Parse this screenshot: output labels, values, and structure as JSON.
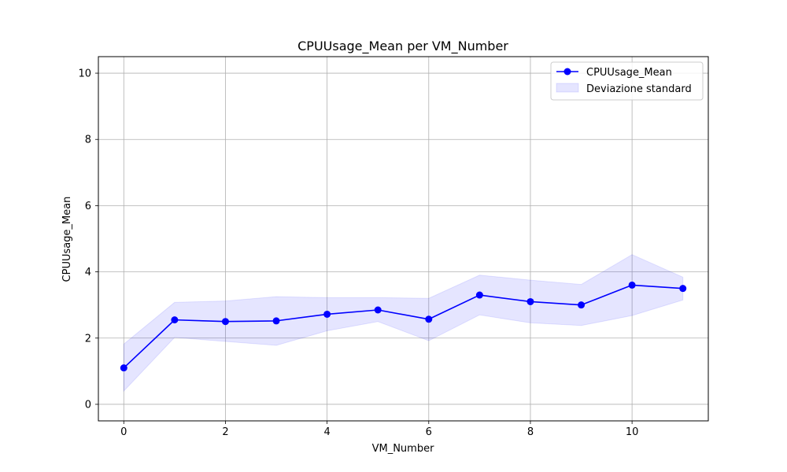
{
  "chart_data": {
    "type": "line",
    "title": "CPUUsage_Mean per VM_Number",
    "xlabel": "VM_Number",
    "ylabel": "CPUUsage_Mean",
    "xlim": [
      -0.5,
      11.5
    ],
    "ylim": [
      -0.5,
      10.5
    ],
    "x_ticks": [
      0,
      2,
      4,
      6,
      8,
      10
    ],
    "y_ticks": [
      0,
      2,
      4,
      6,
      8,
      10
    ],
    "grid": true,
    "legend_position": "top-right",
    "x": [
      0,
      1,
      2,
      3,
      4,
      5,
      6,
      7,
      8,
      9,
      10,
      11
    ],
    "series": [
      {
        "name": "CPUUsage_Mean",
        "color": "#0000ff",
        "marker": "circle",
        "values": [
          1.1,
          2.55,
          2.5,
          2.52,
          2.72,
          2.85,
          2.57,
          3.3,
          3.1,
          3.0,
          3.6,
          3.5
        ]
      }
    ],
    "band": {
      "name": "Deviazione standard",
      "color": "#0000ff",
      "opacity": 0.1,
      "lower": [
        0.4,
        2.02,
        1.9,
        1.78,
        2.22,
        2.5,
        1.92,
        2.7,
        2.46,
        2.38,
        2.68,
        3.15
      ],
      "upper": [
        1.82,
        3.08,
        3.12,
        3.25,
        3.22,
        3.22,
        3.2,
        3.9,
        3.75,
        3.62,
        4.52,
        3.84
      ]
    }
  }
}
